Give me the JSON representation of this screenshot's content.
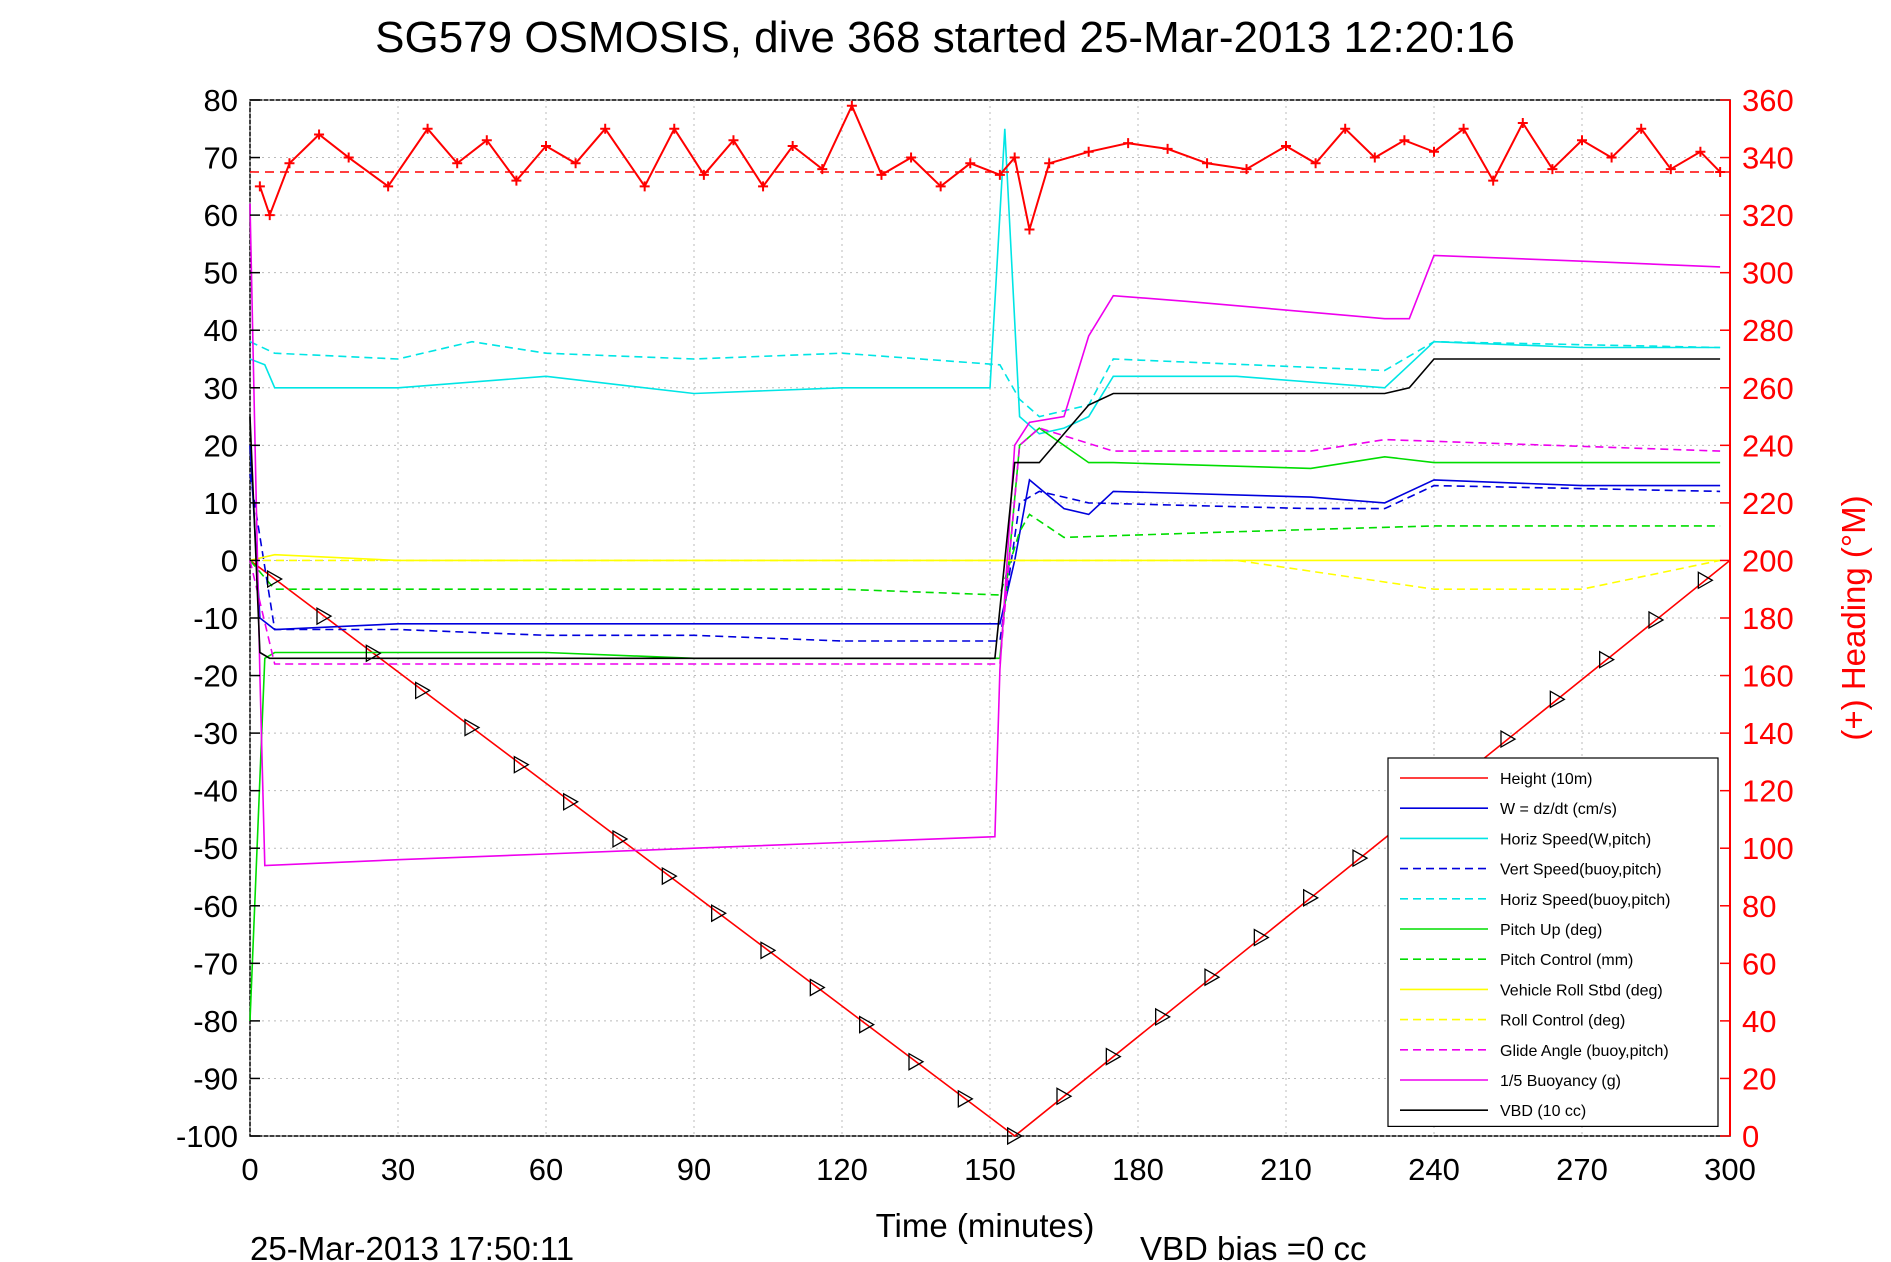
{
  "chart_data": {
    "type": "line",
    "title": "SG579 OSMOSIS, dive 368 started 25-Mar-2013 12:20:16",
    "xlabel": "Time (minutes)",
    "ylabel_right": "(+) Heading (°M)",
    "xlim": [
      0,
      300
    ],
    "ylim": [
      -100,
      80
    ],
    "ylim_right": [
      0,
      360
    ],
    "x_ticks": [
      "0",
      "30",
      "60",
      "90",
      "120",
      "150",
      "180",
      "210",
      "240",
      "270",
      "300"
    ],
    "y_ticks": [
      "80",
      "70",
      "60",
      "50",
      "40",
      "30",
      "20",
      "10",
      "0",
      "-10",
      "-20",
      "-30",
      "-40",
      "-50",
      "-60",
      "-70",
      "-80",
      "-90",
      "-100"
    ],
    "y_ticks_right": [
      "360",
      "340",
      "320",
      "300",
      "280",
      "260",
      "240",
      "220",
      "200",
      "180",
      "160",
      "140",
      "120",
      "100",
      "80",
      "60",
      "40",
      "20",
      "0"
    ],
    "grid": true,
    "legend_position": "bottom-right",
    "footer_left": "25-Mar-2013 17:50:11",
    "footer_right": "VBD bias =0 cc",
    "colors": {
      "red": "#ff0000",
      "blue": "#0000dd",
      "cyan": "#00e5e5",
      "green": "#00dd00",
      "yellow": "#ffff00",
      "magenta": "#ee00ee",
      "black": "#000000"
    },
    "series": [
      {
        "name": "Height (10m)",
        "color": "#ff0000",
        "dash": false,
        "x": [
          0,
          155,
          300
        ],
        "y": [
          0,
          -100,
          0
        ]
      },
      {
        "name": "W = dz/dt (cm/s)",
        "color": "#0000dd",
        "dash": false,
        "x": [
          0,
          2,
          5,
          30,
          60,
          90,
          120,
          152,
          155,
          158,
          165,
          170,
          175,
          215,
          230,
          240,
          270,
          298
        ],
        "y": [
          20,
          -10,
          -12,
          -11,
          -11,
          -11,
          -11,
          -11,
          0,
          14,
          9,
          8,
          12,
          11,
          10,
          14,
          13,
          13
        ]
      },
      {
        "name": "Horiz Speed(W,pitch)",
        "color": "#00e5e5",
        "dash": false,
        "x": [
          0,
          3,
          5,
          30,
          60,
          90,
          120,
          150,
          153,
          156,
          160,
          165,
          170,
          175,
          200,
          230,
          240,
          270,
          298
        ],
        "y": [
          35,
          34,
          30,
          30,
          32,
          29,
          30,
          30,
          75,
          25,
          22,
          23,
          25,
          32,
          32,
          30,
          38,
          37,
          37
        ]
      },
      {
        "name": "Vert Speed(buoy,pitch)",
        "color": "#0000dd",
        "dash": true,
        "x": [
          0,
          5,
          30,
          60,
          90,
          120,
          152,
          156,
          160,
          170,
          215,
          230,
          240,
          298
        ],
        "y": [
          15,
          -12,
          -12,
          -13,
          -13,
          -14,
          -14,
          10,
          12,
          10,
          9,
          9,
          13,
          12
        ]
      },
      {
        "name": "Horiz Speed(buoy,pitch)",
        "color": "#00e5e5",
        "dash": true,
        "x": [
          0,
          5,
          30,
          45,
          60,
          90,
          120,
          152,
          156,
          160,
          170,
          175,
          230,
          240,
          298
        ],
        "y": [
          38,
          36,
          35,
          38,
          36,
          35,
          36,
          34,
          28,
          25,
          27,
          35,
          33,
          38,
          37
        ]
      },
      {
        "name": "Pitch Up (deg)",
        "color": "#00dd00",
        "dash": false,
        "x": [
          0,
          3,
          5,
          30,
          60,
          90,
          120,
          152,
          156,
          160,
          170,
          175,
          215,
          230,
          240,
          298
        ],
        "y": [
          -80,
          -17,
          -16,
          -16,
          -16,
          -17,
          -17,
          -17,
          20,
          23,
          17,
          17,
          16,
          18,
          17,
          17
        ]
      },
      {
        "name": "Pitch Control (mm)",
        "color": "#00dd00",
        "dash": true,
        "x": [
          0,
          5,
          15,
          60,
          90,
          120,
          152,
          156,
          158,
          165,
          200,
          240,
          298
        ],
        "y": [
          0,
          -5,
          -5,
          -5,
          -5,
          -5,
          -6,
          5,
          8,
          4,
          5,
          6,
          6
        ]
      },
      {
        "name": "Vehicle Roll Stbd (deg)",
        "color": "#ffff00",
        "dash": false,
        "x": [
          0,
          5,
          30,
          60,
          90,
          120,
          150,
          155,
          160,
          200,
          240,
          270,
          298
        ],
        "y": [
          0,
          1,
          0,
          0,
          0,
          0,
          0,
          0,
          0,
          0,
          0,
          0,
          0
        ]
      },
      {
        "name": "Roll Control (deg)",
        "color": "#ffff00",
        "dash": true,
        "x": [
          0,
          5,
          30,
          60,
          90,
          120,
          150,
          156,
          160,
          200,
          240,
          270,
          298
        ],
        "y": [
          0,
          0,
          0,
          0,
          0,
          0,
          0,
          0,
          0,
          0,
          -5,
          -5,
          0
        ]
      },
      {
        "name": "Glide Angle (buoy,pitch)",
        "color": "#ee00ee",
        "dash": true,
        "x": [
          0,
          5,
          30,
          60,
          90,
          120,
          152,
          156,
          160,
          175,
          215,
          230,
          298
        ],
        "y": [
          0,
          -18,
          -18,
          -18,
          -18,
          -18,
          -18,
          20,
          23,
          19,
          19,
          21,
          19
        ]
      },
      {
        "name": "1/5 Buoyancy (g)",
        "color": "#ee00ee",
        "dash": false,
        "x": [
          0,
          2,
          3,
          30,
          60,
          90,
          120,
          151,
          152,
          155,
          158,
          165,
          170,
          175,
          190,
          230,
          235,
          240,
          270,
          298
        ],
        "y": [
          62,
          -20,
          -53,
          -52,
          -51,
          -50,
          -49,
          -48,
          -19,
          20,
          24,
          25,
          39,
          46,
          45,
          42,
          42,
          53,
          52,
          51
        ]
      },
      {
        "name": "VBD (10 cc)",
        "color": "#000000",
        "dash": false,
        "x": [
          0,
          2,
          4,
          30,
          60,
          90,
          120,
          150,
          151,
          155,
          160,
          170,
          175,
          180,
          200,
          230,
          235,
          240,
          298
        ],
        "y": [
          25,
          -16,
          -17,
          -17,
          -17,
          -17,
          -17,
          -17,
          -17,
          17,
          17,
          27,
          29,
          29,
          29,
          29,
          30,
          35,
          35
        ]
      }
    ],
    "heading": {
      "name": "(+) Heading (°M)",
      "color": "#ff0000",
      "marker": "+",
      "mean_line": 335,
      "x": [
        2,
        4,
        8,
        14,
        20,
        28,
        36,
        42,
        48,
        54,
        60,
        66,
        72,
        80,
        86,
        92,
        98,
        104,
        110,
        116,
        122,
        128,
        134,
        140,
        146,
        152,
        155,
        158,
        162,
        170,
        178,
        186,
        194,
        202,
        210,
        216,
        222,
        228,
        234,
        240,
        246,
        252,
        258,
        264,
        270,
        276,
        282,
        288,
        294,
        298
      ],
      "y": [
        330,
        320,
        338,
        348,
        340,
        330,
        350,
        338,
        346,
        332,
        344,
        338,
        350,
        330,
        350,
        334,
        346,
        330,
        344,
        336,
        358,
        334,
        340,
        330,
        338,
        334,
        340,
        315,
        338,
        342,
        345,
        343,
        338,
        336,
        344,
        338,
        350,
        340,
        346,
        342,
        350,
        332,
        352,
        336,
        346,
        340,
        350,
        336,
        342,
        335
      ]
    }
  }
}
